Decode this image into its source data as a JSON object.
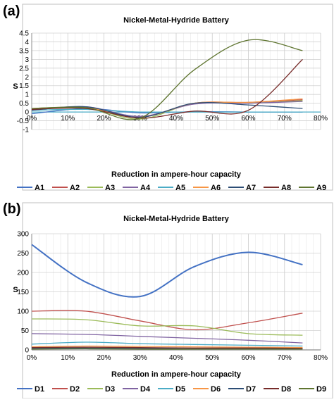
{
  "chart_data": [
    {
      "panel_label": "(a)",
      "type": "line",
      "title": "Nickel-Metal-Hydride Battery",
      "xlabel": "Reduction in ampere-hour capacity",
      "ylabel": "S",
      "xlim": [
        0,
        80
      ],
      "ylim": [
        -1,
        4.5
      ],
      "x_ticks": [
        "0%",
        "10%",
        "20%",
        "30%",
        "40%",
        "50%",
        "60%",
        "70%",
        "80%"
      ],
      "y_ticks": [
        "-1",
        "-0.5",
        "0",
        "0.5",
        "1",
        "1.5",
        "2",
        "2.5",
        "3",
        "3.5",
        "4",
        "4.5"
      ],
      "grid": true,
      "legend_position": "bottom",
      "x": [
        0,
        15,
        30,
        45,
        60,
        75
      ],
      "series": [
        {
          "name": "A1",
          "color": "#4472c4",
          "values": [
            -0.1,
            0.2,
            -0.05,
            0.02,
            0.0,
            0.0
          ]
        },
        {
          "name": "A2",
          "color": "#c0504d",
          "values": [
            0.15,
            0.25,
            -0.3,
            0.5,
            0.55,
            0.7
          ]
        },
        {
          "name": "A3",
          "color": "#9bbb59",
          "values": [
            0.2,
            0.25,
            -0.4,
            0.5,
            0.5,
            0.65
          ]
        },
        {
          "name": "A4",
          "color": "#8064a2",
          "values": [
            0.1,
            0.3,
            -0.25,
            0.45,
            0.5,
            0.6
          ]
        },
        {
          "name": "A5",
          "color": "#4bacc6",
          "values": [
            0.1,
            0.15,
            0.0,
            0.0,
            0.0,
            0.0
          ]
        },
        {
          "name": "A6",
          "color": "#f79646",
          "values": [
            0.2,
            0.25,
            -0.3,
            0.5,
            0.55,
            0.75
          ]
        },
        {
          "name": "A7",
          "color": "#2c4d75",
          "values": [
            0.1,
            0.3,
            -0.3,
            0.5,
            0.4,
            0.2
          ]
        },
        {
          "name": "A8",
          "color": "#772c2a",
          "values": [
            0.15,
            0.2,
            -0.35,
            0.05,
            0.1,
            3.0
          ]
        },
        {
          "name": "A9",
          "color": "#5f7530",
          "values": [
            0.2,
            0.25,
            -0.35,
            2.4,
            4.1,
            3.5
          ]
        }
      ]
    },
    {
      "panel_label": "(b)",
      "type": "line",
      "title": "Nickel-Metal-Hydride Battery",
      "xlabel": "Reduction in ampere-hour capacity",
      "ylabel": "S",
      "xlim": [
        0,
        80
      ],
      "ylim": [
        0,
        300
      ],
      "x_ticks": [
        "0%",
        "10%",
        "20%",
        "30%",
        "40%",
        "50%",
        "60%",
        "70%",
        "80%"
      ],
      "y_ticks": [
        "0",
        "50",
        "100",
        "150",
        "200",
        "250",
        "300"
      ],
      "grid": true,
      "legend_position": "bottom",
      "x": [
        0,
        15,
        30,
        45,
        60,
        75
      ],
      "series": [
        {
          "name": "D1",
          "color": "#4472c4",
          "values": [
            272,
            175,
            138,
            215,
            252,
            220
          ]
        },
        {
          "name": "D2",
          "color": "#c0504d",
          "values": [
            100,
            100,
            75,
            52,
            70,
            95
          ]
        },
        {
          "name": "D3",
          "color": "#9bbb59",
          "values": [
            80,
            78,
            62,
            62,
            42,
            38
          ]
        },
        {
          "name": "D4",
          "color": "#8064a2",
          "values": [
            42,
            40,
            35,
            30,
            25,
            18
          ]
        },
        {
          "name": "D5",
          "color": "#4bacc6",
          "values": [
            15,
            20,
            16,
            14,
            12,
            10
          ]
        },
        {
          "name": "D6",
          "color": "#f79646",
          "values": [
            8,
            10,
            9,
            8,
            7,
            6
          ]
        },
        {
          "name": "D7",
          "color": "#2c4d75",
          "values": [
            4,
            5,
            4,
            4,
            3,
            3
          ]
        },
        {
          "name": "D8",
          "color": "#772c2a",
          "values": [
            6,
            7,
            6,
            5,
            5,
            4
          ]
        },
        {
          "name": "D9",
          "color": "#5f7530",
          "values": [
            2,
            3,
            2,
            2,
            2,
            2
          ]
        }
      ]
    }
  ]
}
